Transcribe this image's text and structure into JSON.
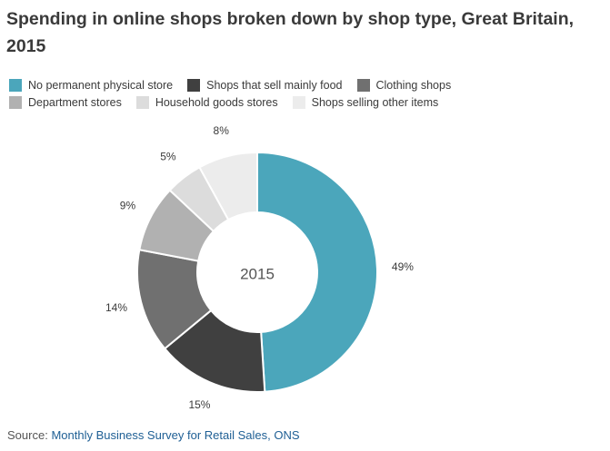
{
  "title": "Spending in online shops broken down by shop type, Great Britain, 2015",
  "source": {
    "label": "Source:",
    "link_text": "Monthly Business Survey for Retail Sales, ONS"
  },
  "chart_data": {
    "type": "pie",
    "variant": "donut",
    "center_label": "2015",
    "legend_position": "top",
    "unit": "%",
    "slices": [
      {
        "name": "No permanent physical store",
        "value": 49,
        "label": "49%",
        "color": "#4ba6bb"
      },
      {
        "name": "Shops that sell mainly food",
        "value": 15,
        "label": "15%",
        "color": "#404040"
      },
      {
        "name": "Clothing shops",
        "value": 14,
        "label": "14%",
        "color": "#707070"
      },
      {
        "name": "Department stores",
        "value": 9,
        "label": "9%",
        "color": "#b1b1b1"
      },
      {
        "name": "Household goods stores",
        "value": 5,
        "label": "5%",
        "color": "#dcdcdc"
      },
      {
        "name": "Shops selling other items",
        "value": 8,
        "label": "8%",
        "color": "#ececec"
      }
    ]
  }
}
